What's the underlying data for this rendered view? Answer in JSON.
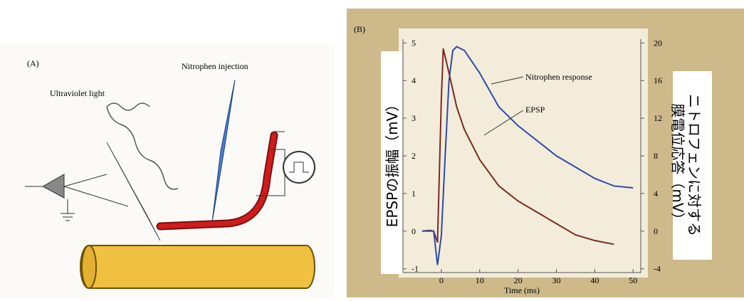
{
  "panel_a": {
    "label": "(A)",
    "injection": "Nitrophen injection",
    "light": "Ultraviolet light"
  },
  "chart_data": {
    "type": "line",
    "panel_label": "(B)",
    "x_label": "Time (ms)",
    "y_label": "EPSPの振幅（mV）",
    "y2_label": [
      "ニトロフェンに対する",
      "膜電位応答（mV）"
    ],
    "xlim": [
      -10,
      52
    ],
    "xticks": [
      0,
      10,
      20,
      30,
      40,
      50
    ],
    "ylim": [
      -1.1,
      5.1
    ],
    "yticks": [
      -1,
      0,
      1,
      2,
      3,
      4,
      5
    ],
    "y2lim": [
      -4.4,
      20.4
    ],
    "y2ticks": [
      -4,
      0,
      4,
      8,
      12,
      16,
      20
    ],
    "series": [
      {
        "name": "EPSP",
        "color": "#7a2a1e",
        "x": [
          -5,
          -3,
          -2,
          -1,
          0,
          0.5,
          2,
          4,
          6,
          8,
          10,
          15,
          20,
          25,
          30,
          35,
          40,
          45
        ],
        "values": [
          0,
          0.02,
          0,
          -0.3,
          3.5,
          4.85,
          4.2,
          3.3,
          2.7,
          2.3,
          1.9,
          1.2,
          0.8,
          0.5,
          0.2,
          -0.1,
          -0.25,
          -0.35
        ]
      },
      {
        "name": "Nitrophen response",
        "color": "#2e4aa8",
        "axis": "y2",
        "x": [
          -5,
          -2,
          -1,
          0,
          1,
          2,
          3,
          4,
          6,
          8,
          10,
          15,
          20,
          25,
          30,
          35,
          40,
          45,
          50
        ],
        "values": [
          0,
          0,
          -3.6,
          -0.5,
          8,
          16,
          19.2,
          19.6,
          19.2,
          18,
          16.8,
          13.2,
          11.2,
          9.6,
          8,
          6.8,
          5.6,
          4.8,
          4.6
        ]
      }
    ]
  }
}
